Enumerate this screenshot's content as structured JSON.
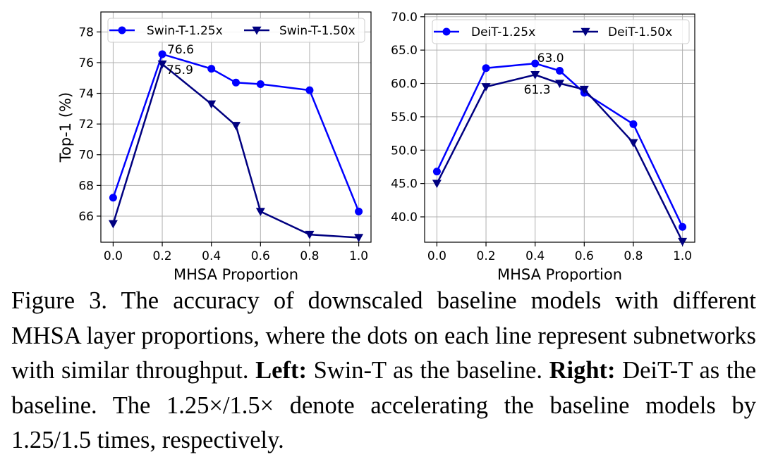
{
  "chart_data": [
    {
      "type": "line",
      "xlabel": "MHSA Proportion",
      "ylabel": "Top-1 (%)",
      "xlim": [
        -0.05,
        1.05
      ],
      "ylim": [
        64.3,
        79.3
      ],
      "xticks": [
        0.0,
        0.2,
        0.4,
        0.6,
        0.8,
        1.0
      ],
      "xtick_labels": [
        "0.0",
        "0.2",
        "0.4",
        "0.6",
        "0.8",
        "1.0"
      ],
      "yticks": [
        66,
        68,
        70,
        72,
        74,
        76,
        78
      ],
      "ytick_labels": [
        "66",
        "68",
        "70",
        "72",
        "74",
        "76",
        "78"
      ],
      "grid": true,
      "legend_position": "top",
      "series": [
        {
          "name": "Swin-T-1.25x",
          "marker": "circle",
          "color": "#0000ff",
          "x": [
            0.0,
            0.2,
            0.4,
            0.5,
            0.6,
            0.8,
            1.0
          ],
          "y": [
            67.2,
            76.55,
            75.6,
            74.7,
            74.6,
            74.2,
            66.3
          ]
        },
        {
          "name": "Swin-T-1.50x",
          "marker": "triangle-down",
          "color": "#000080",
          "x": [
            0.0,
            0.2,
            0.4,
            0.5,
            0.6,
            0.8,
            1.0
          ],
          "y": [
            65.5,
            75.9,
            73.3,
            71.9,
            66.3,
            64.8,
            64.6
          ]
        }
      ],
      "annotations": [
        {
          "text": "76.6",
          "x": 0.2,
          "y": 76.55,
          "anchor": "right"
        },
        {
          "text": "75.9",
          "x": 0.2,
          "y": 75.9,
          "anchor": "right-below"
        }
      ]
    },
    {
      "type": "line",
      "xlabel": "MHSA Proportion",
      "ylabel": "",
      "xlim": [
        -0.05,
        1.05
      ],
      "ylim": [
        36.2,
        70.4
      ],
      "xticks": [
        0.0,
        0.2,
        0.4,
        0.6,
        0.8,
        1.0
      ],
      "xtick_labels": [
        "0.0",
        "0.2",
        "0.4",
        "0.6",
        "0.8",
        "1.0"
      ],
      "yticks": [
        40,
        45,
        50,
        55,
        60,
        65,
        70
      ],
      "ytick_labels": [
        "40.0",
        "45.0",
        "50.0",
        "55.0",
        "60.0",
        "65.0",
        "70.0"
      ],
      "grid": true,
      "legend_position": "top",
      "series": [
        {
          "name": "DeiT-1.25x",
          "marker": "circle",
          "color": "#0000ff",
          "x": [
            0.0,
            0.2,
            0.4,
            0.5,
            0.6,
            0.8,
            1.0
          ],
          "y": [
            46.8,
            62.3,
            63.0,
            61.9,
            58.6,
            53.9,
            38.5
          ]
        },
        {
          "name": "DeiT-1.50x",
          "marker": "triangle-down",
          "color": "#000080",
          "x": [
            0.0,
            0.2,
            0.4,
            0.5,
            0.6,
            0.8,
            1.0
          ],
          "y": [
            45.0,
            59.5,
            61.3,
            60.0,
            59.1,
            51.1,
            36.3
          ]
        }
      ],
      "annotations": [
        {
          "text": "63.0",
          "x": 0.4,
          "y": 63.0,
          "anchor": "above-right"
        },
        {
          "text": "61.3",
          "x": 0.4,
          "y": 61.3,
          "anchor": "below-left"
        }
      ]
    }
  ],
  "caption": {
    "label": "Figure 3.",
    "text1": "The accuracy of downscaled baseline models with different MHSA layer proportions, where the dots on each line represent subnetworks with similar throughput.",
    "left_label": "Left:",
    "left_text": "Swin-T as the baseline.",
    "right_label": "Right:",
    "right_text": "DeiT-T as the baseline. The 1.25×/1.5× denote accelerating the baseline models by 1.25/1.5 times, respectively."
  }
}
